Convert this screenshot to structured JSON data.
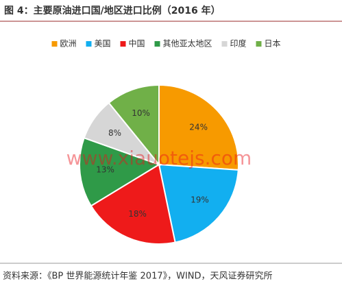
{
  "chart_data": {
    "type": "pie",
    "title": "图 4：主要原油进口国/地区进口比例（2016 年）",
    "categories": [
      "欧洲",
      "美国",
      "中国",
      "其他亚太地区",
      "印度",
      "日本"
    ],
    "values": [
      24,
      19,
      18,
      13,
      8,
      10
    ],
    "value_labels": [
      "24%",
      "19%",
      "18%",
      "13%",
      "8%",
      "10%"
    ],
    "colors": [
      "#f79a00",
      "#12aff0",
      "#ee1a1a",
      "#2f9a48",
      "#d6d6d6",
      "#70b048"
    ],
    "legend": "top",
    "watermark": "www.xiauotejs.com",
    "source": "资料来源：《BP 世界能源统计年鉴 2017》，WIND，天风证券研究所"
  }
}
